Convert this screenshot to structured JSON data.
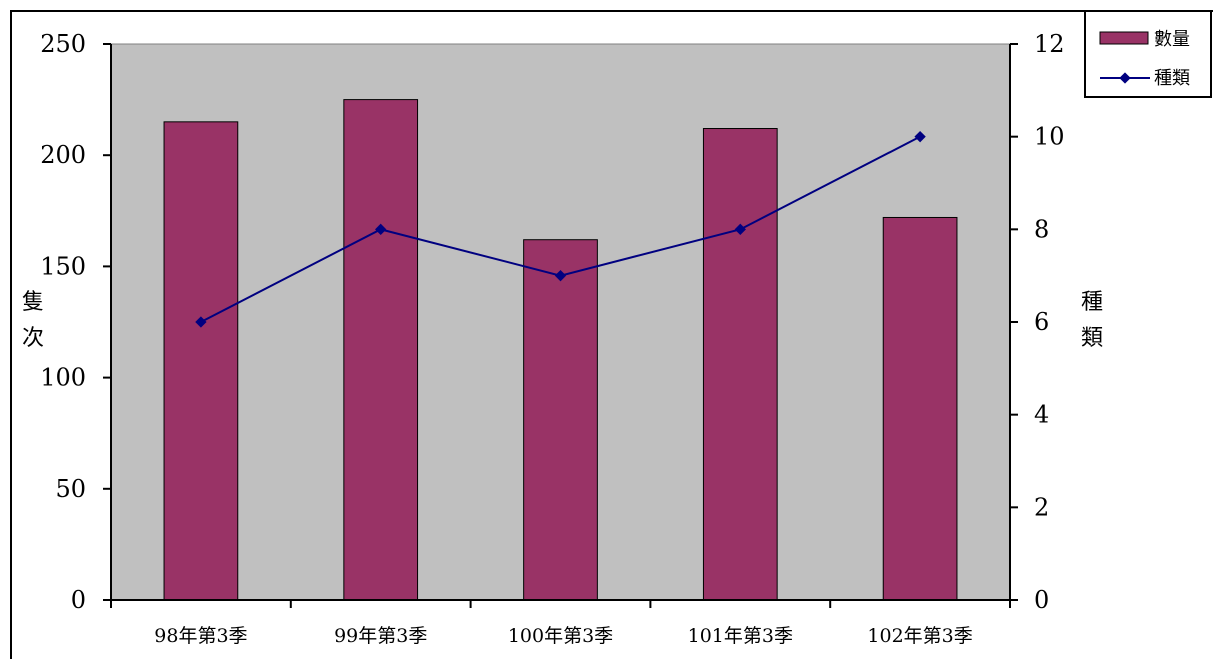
{
  "chart_data": {
    "type": "bar+line",
    "categories": [
      "98年第3季",
      "99年第3季",
      "100年第3季",
      "101年第3季",
      "102年第3季"
    ],
    "series": [
      {
        "name": "數量",
        "type": "bar",
        "axis": "left",
        "values": [
          215,
          225,
          162,
          212,
          172
        ],
        "color": "#993366"
      },
      {
        "name": "種類",
        "type": "line",
        "axis": "right",
        "values": [
          6,
          8,
          7,
          8,
          10
        ],
        "color": "#000080"
      }
    ],
    "y_left": {
      "label": "隻次",
      "range": [
        0,
        250
      ],
      "ticks": [
        "0",
        "50",
        "100",
        "150",
        "200",
        "250"
      ]
    },
    "y_right": {
      "label": "種類",
      "range": [
        0,
        12
      ],
      "ticks": [
        "0",
        "2",
        "4",
        "6",
        "8",
        "10",
        "12"
      ]
    },
    "plot_background": "#c0c0c0",
    "grid": false,
    "legend": {
      "placement": "top-right",
      "entries": [
        "數量",
        "種類"
      ]
    }
  }
}
